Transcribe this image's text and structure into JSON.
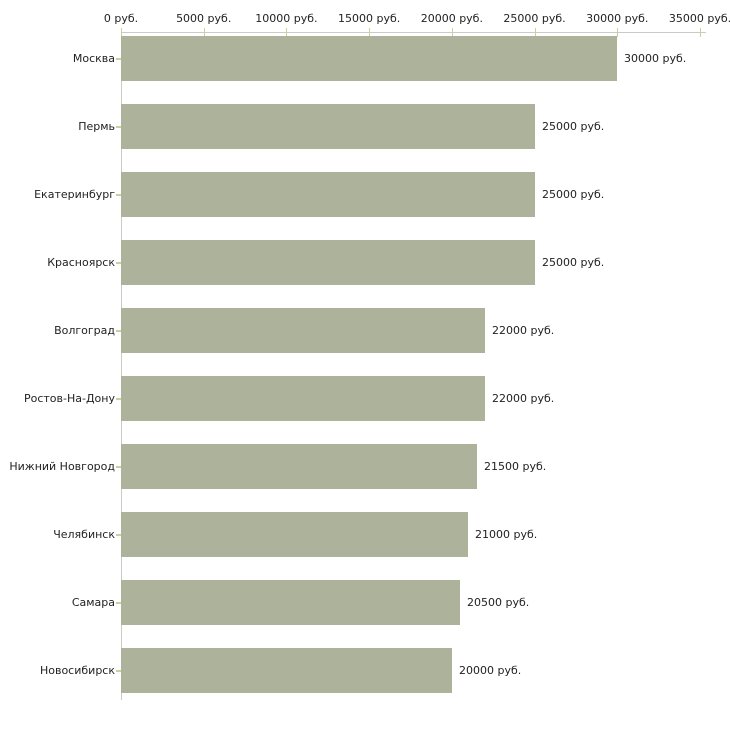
{
  "chart": {
    "background_color": "#ffffff",
    "bar_color": "#adb39b",
    "axis_line_color": "#cbcbc5",
    "tick_mark_color": "#cdcd9e",
    "text_color": "#222222"
  },
  "chart_data": {
    "type": "bar",
    "orientation": "horizontal",
    "title": "",
    "xlabel": "",
    "ylabel": "",
    "categories": [
      "Москва",
      "Пермь",
      "Екатеринбург",
      "Красноярск",
      "Волгоград",
      "Ростов-На-Дону",
      "Нижний Новгород",
      "Челябинск",
      "Самара",
      "Новосибирск"
    ],
    "values": [
      30000,
      25000,
      25000,
      25000,
      22000,
      22000,
      21500,
      21000,
      20500,
      20000
    ],
    "value_labels": [
      "30000 руб.",
      "25000 руб.",
      "25000 руб.",
      "25000 руб.",
      "22000 руб.",
      "22000 руб.",
      "21500 руб.",
      "21000 руб.",
      "20500 руб.",
      "20000 руб."
    ],
    "x_axis": {
      "position": "top",
      "xlim": [
        0,
        35000
      ],
      "ticks": [
        0,
        5000,
        10000,
        15000,
        20000,
        25000,
        30000,
        35000
      ],
      "tick_labels": [
        "0 руб.",
        "5000 руб.",
        "10000 руб.",
        "15000 руб.",
        "20000 руб.",
        "25000 руб.",
        "30000 руб.",
        "35000 руб."
      ]
    },
    "legend": "none",
    "grid": "off"
  }
}
